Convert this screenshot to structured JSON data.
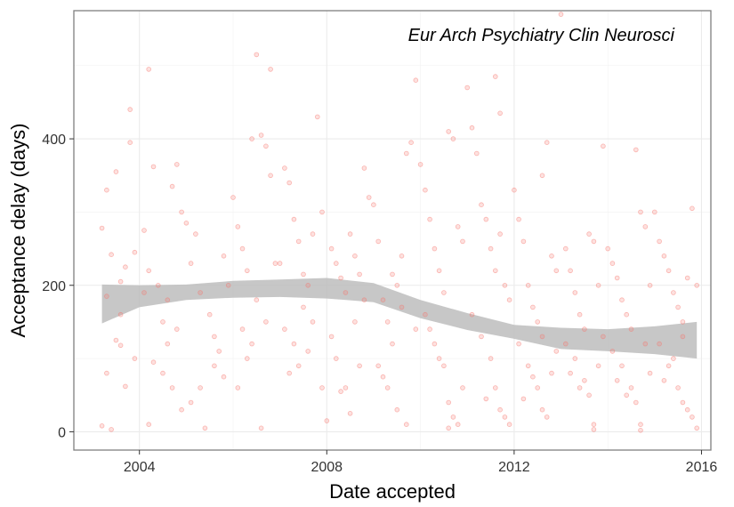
{
  "chart_data": {
    "type": "scatter",
    "title": "",
    "annotation": "Eur Arch Psychiatry Clin Neurosci",
    "xlabel": "Date accepted",
    "ylabel": "Acceptance delay (days)",
    "xlim": [
      2002.6,
      2016.2
    ],
    "ylim": [
      -25,
      575
    ],
    "x_ticks": [
      2004,
      2008,
      2012,
      2016
    ],
    "x_tick_labels": [
      "2004",
      "2008",
      "2012",
      "2016"
    ],
    "y_ticks": [
      0,
      200,
      400
    ],
    "y_tick_labels": [
      "0",
      "200",
      "400"
    ],
    "grid": true,
    "point_color": "#f8766d",
    "band_color": "#bdbdbd",
    "smooth_band": {
      "x": [
        2003.2,
        2004,
        2005,
        2006,
        2007,
        2008,
        2009,
        2010,
        2011,
        2012,
        2013,
        2014,
        2015,
        2015.9
      ],
      "upper": [
        201,
        200,
        201,
        206,
        208,
        210,
        203,
        180,
        162,
        146,
        142,
        140,
        144,
        150
      ],
      "lower": [
        148,
        170,
        180,
        183,
        184,
        182,
        177,
        155,
        139,
        127,
        113,
        110,
        106,
        100
      ]
    },
    "points": [
      [
        2003.2,
        278
      ],
      [
        2003.3,
        330
      ],
      [
        2003.4,
        242
      ],
      [
        2003.5,
        355
      ],
      [
        2003.6,
        205
      ],
      [
        2003.7,
        225
      ],
      [
        2003.8,
        440
      ],
      [
        2003.8,
        395
      ],
      [
        2003.5,
        125
      ],
      [
        2003.6,
        118
      ],
      [
        2003.3,
        80
      ],
      [
        2003.7,
        62
      ],
      [
        2003.9,
        100
      ],
      [
        2003.2,
        8
      ],
      [
        2003.4,
        3
      ],
      [
        2003.9,
        245
      ],
      [
        2003.3,
        185
      ],
      [
        2003.6,
        160
      ],
      [
        2004.1,
        275
      ],
      [
        2004.2,
        495
      ],
      [
        2004.3,
        362
      ],
      [
        2004.2,
        220
      ],
      [
        2004.4,
        200
      ],
      [
        2004.5,
        150
      ],
      [
        2004.6,
        120
      ],
      [
        2004.7,
        335
      ],
      [
        2004.8,
        365
      ],
      [
        2004.9,
        300
      ],
      [
        2004.1,
        190
      ],
      [
        2004.3,
        95
      ],
      [
        2004.5,
        80
      ],
      [
        2004.7,
        60
      ],
      [
        2004.9,
        30
      ],
      [
        2004.2,
        10
      ],
      [
        2004.6,
        180
      ],
      [
        2004.8,
        140
      ],
      [
        2005.0,
        285
      ],
      [
        2005.1,
        230
      ],
      [
        2005.2,
        270
      ],
      [
        2005.3,
        190
      ],
      [
        2005.5,
        160
      ],
      [
        2005.6,
        130
      ],
      [
        2005.7,
        110
      ],
      [
        2005.8,
        240
      ],
      [
        2005.9,
        200
      ],
      [
        2005.1,
        40
      ],
      [
        2005.3,
        60
      ],
      [
        2005.4,
        5
      ],
      [
        2005.6,
        90
      ],
      [
        2005.8,
        75
      ],
      [
        2006.0,
        320
      ],
      [
        2006.1,
        280
      ],
      [
        2006.2,
        250
      ],
      [
        2006.3,
        220
      ],
      [
        2006.4,
        400
      ],
      [
        2006.5,
        515
      ],
      [
        2006.6,
        405
      ],
      [
        2006.7,
        390
      ],
      [
        2006.8,
        495
      ],
      [
        2006.5,
        180
      ],
      [
        2006.7,
        150
      ],
      [
        2006.9,
        230
      ],
      [
        2006.2,
        140
      ],
      [
        2006.4,
        120
      ],
      [
        2006.6,
        5
      ],
      [
        2006.8,
        350
      ],
      [
        2006.3,
        100
      ],
      [
        2006.1,
        60
      ],
      [
        2007.0,
        230
      ],
      [
        2007.1,
        360
      ],
      [
        2007.2,
        340
      ],
      [
        2007.3,
        290
      ],
      [
        2007.4,
        260
      ],
      [
        2007.5,
        215
      ],
      [
        2007.6,
        200
      ],
      [
        2007.7,
        270
      ],
      [
        2007.8,
        430
      ],
      [
        2007.9,
        300
      ],
      [
        2007.1,
        140
      ],
      [
        2007.3,
        120
      ],
      [
        2007.5,
        170
      ],
      [
        2007.7,
        150
      ],
      [
        2007.9,
        60
      ],
      [
        2007.4,
        90
      ],
      [
        2007.6,
        110
      ],
      [
        2007.2,
        80
      ],
      [
        2008.0,
        15
      ],
      [
        2008.1,
        250
      ],
      [
        2008.2,
        230
      ],
      [
        2008.3,
        210
      ],
      [
        2008.4,
        190
      ],
      [
        2008.5,
        270
      ],
      [
        2008.6,
        240
      ],
      [
        2008.7,
        215
      ],
      [
        2008.8,
        360
      ],
      [
        2008.9,
        320
      ],
      [
        2008.2,
        100
      ],
      [
        2008.4,
        60
      ],
      [
        2008.6,
        150
      ],
      [
        2008.8,
        180
      ],
      [
        2008.1,
        130
      ],
      [
        2008.3,
        55
      ],
      [
        2008.5,
        25
      ],
      [
        2008.7,
        90
      ],
      [
        2009.0,
        310
      ],
      [
        2009.1,
        260
      ],
      [
        2009.2,
        180
      ],
      [
        2009.3,
        150
      ],
      [
        2009.4,
        120
      ],
      [
        2009.5,
        200
      ],
      [
        2009.6,
        240
      ],
      [
        2009.7,
        380
      ],
      [
        2009.8,
        395
      ],
      [
        2009.9,
        480
      ],
      [
        2009.1,
        90
      ],
      [
        2009.3,
        60
      ],
      [
        2009.5,
        30
      ],
      [
        2009.7,
        10
      ],
      [
        2009.9,
        140
      ],
      [
        2009.4,
        215
      ],
      [
        2009.6,
        170
      ],
      [
        2009.2,
        75
      ],
      [
        2010.0,
        365
      ],
      [
        2010.1,
        330
      ],
      [
        2010.2,
        290
      ],
      [
        2010.3,
        250
      ],
      [
        2010.4,
        220
      ],
      [
        2010.5,
        190
      ],
      [
        2010.6,
        410
      ],
      [
        2010.7,
        400
      ],
      [
        2010.8,
        280
      ],
      [
        2010.9,
        260
      ],
      [
        2010.1,
        160
      ],
      [
        2010.3,
        120
      ],
      [
        2010.5,
        90
      ],
      [
        2010.6,
        40
      ],
      [
        2010.7,
        20
      ],
      [
        2010.8,
        10
      ],
      [
        2010.9,
        60
      ],
      [
        2010.2,
        140
      ],
      [
        2010.4,
        100
      ],
      [
        2010.6,
        5
      ],
      [
        2011.0,
        470
      ],
      [
        2011.1,
        415
      ],
      [
        2011.2,
        380
      ],
      [
        2011.3,
        310
      ],
      [
        2011.4,
        290
      ],
      [
        2011.5,
        250
      ],
      [
        2011.6,
        220
      ],
      [
        2011.7,
        270
      ],
      [
        2011.8,
        200
      ],
      [
        2011.9,
        180
      ],
      [
        2011.1,
        160
      ],
      [
        2011.3,
        130
      ],
      [
        2011.5,
        100
      ],
      [
        2011.6,
        60
      ],
      [
        2011.7,
        30
      ],
      [
        2011.8,
        20
      ],
      [
        2011.9,
        10
      ],
      [
        2011.4,
        45
      ],
      [
        2011.6,
        485
      ],
      [
        2011.7,
        435
      ],
      [
        2012.0,
        330
      ],
      [
        2012.1,
        290
      ],
      [
        2012.2,
        260
      ],
      [
        2012.3,
        200
      ],
      [
        2012.4,
        170
      ],
      [
        2012.5,
        150
      ],
      [
        2012.6,
        350
      ],
      [
        2012.7,
        395
      ],
      [
        2012.8,
        240
      ],
      [
        2012.9,
        220
      ],
      [
        2012.1,
        120
      ],
      [
        2012.3,
        90
      ],
      [
        2012.5,
        60
      ],
      [
        2012.6,
        30
      ],
      [
        2012.7,
        20
      ],
      [
        2012.8,
        80
      ],
      [
        2012.9,
        110
      ],
      [
        2012.2,
        45
      ],
      [
        2012.4,
        75
      ],
      [
        2012.6,
        130
      ],
      [
        2013.0,
        570
      ],
      [
        2013.1,
        250
      ],
      [
        2013.2,
        220
      ],
      [
        2013.3,
        190
      ],
      [
        2013.4,
        160
      ],
      [
        2013.5,
        140
      ],
      [
        2013.6,
        270
      ],
      [
        2013.7,
        260
      ],
      [
        2013.8,
        200
      ],
      [
        2013.9,
        390
      ],
      [
        2013.1,
        120
      ],
      [
        2013.3,
        100
      ],
      [
        2013.5,
        70
      ],
      [
        2013.6,
        50
      ],
      [
        2013.7,
        10
      ],
      [
        2013.7,
        3
      ],
      [
        2013.8,
        90
      ],
      [
        2013.9,
        130
      ],
      [
        2013.4,
        60
      ],
      [
        2013.2,
        80
      ],
      [
        2014.0,
        250
      ],
      [
        2014.1,
        230
      ],
      [
        2014.2,
        210
      ],
      [
        2014.3,
        180
      ],
      [
        2014.4,
        160
      ],
      [
        2014.5,
        140
      ],
      [
        2014.6,
        385
      ],
      [
        2014.7,
        300
      ],
      [
        2014.8,
        280
      ],
      [
        2014.9,
        200
      ],
      [
        2014.1,
        110
      ],
      [
        2014.3,
        90
      ],
      [
        2014.5,
        60
      ],
      [
        2014.6,
        40
      ],
      [
        2014.7,
        10
      ],
      [
        2014.7,
        2
      ],
      [
        2014.8,
        120
      ],
      [
        2014.9,
        80
      ],
      [
        2014.4,
        50
      ],
      [
        2014.2,
        70
      ],
      [
        2015.0,
        300
      ],
      [
        2015.1,
        260
      ],
      [
        2015.2,
        240
      ],
      [
        2015.3,
        220
      ],
      [
        2015.4,
        190
      ],
      [
        2015.5,
        170
      ],
      [
        2015.6,
        150
      ],
      [
        2015.7,
        210
      ],
      [
        2015.8,
        305
      ],
      [
        2015.9,
        200
      ],
      [
        2015.1,
        120
      ],
      [
        2015.3,
        90
      ],
      [
        2015.5,
        60
      ],
      [
        2015.6,
        40
      ],
      [
        2015.7,
        30
      ],
      [
        2015.8,
        20
      ],
      [
        2015.9,
        5
      ],
      [
        2015.4,
        100
      ],
      [
        2015.2,
        70
      ],
      [
        2015.6,
        130
      ]
    ]
  }
}
